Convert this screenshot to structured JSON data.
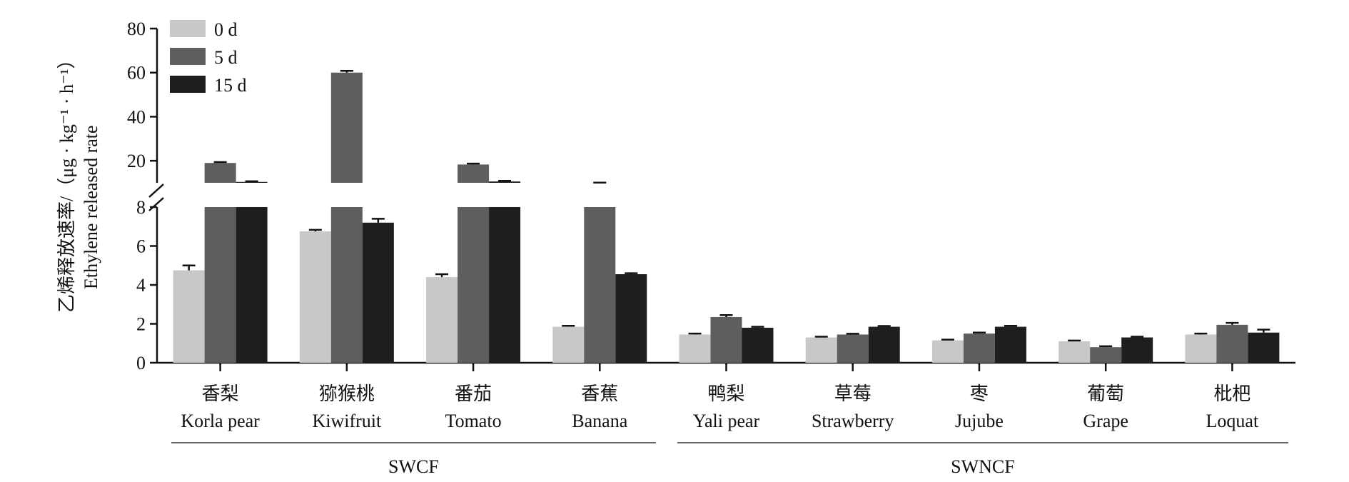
{
  "chart_data": {
    "type": "bar",
    "broken_y_axis": true,
    "ylabel_cn": "乙烯释放速率/（μg · kg⁻¹ · h⁻¹）",
    "ylabel_en": "Ethylene released rate",
    "ylim_lower": [
      0,
      8
    ],
    "ylim_upper": [
      10,
      80
    ],
    "yticks_lower": [
      "0",
      "2",
      "4",
      "6",
      "8"
    ],
    "yticks_upper": [
      "20",
      "40",
      "60",
      "80"
    ],
    "legend_position": "top-left",
    "categories_cn": [
      "香梨",
      "猕猴桃",
      "番茄",
      "香蕉",
      "鸭梨",
      "草莓",
      "枣",
      "葡萄",
      "枇杷"
    ],
    "categories_en": [
      "Korla pear",
      "Kiwifruit",
      "Tomato",
      "Banana",
      "Yali  pear",
      "Strawberry",
      "Jujube",
      "Grape",
      "Loquat"
    ],
    "groups": [
      {
        "label": "SWCF",
        "categories": [
          0,
          1,
          2,
          3
        ]
      },
      {
        "label": "SWNCF",
        "categories": [
          4,
          5,
          6,
          7,
          8
        ]
      }
    ],
    "series": [
      {
        "name": "0 d",
        "color": "#c8c8c8",
        "values": [
          4.75,
          6.75,
          4.4,
          1.85,
          1.45,
          1.3,
          1.15,
          1.1,
          1.45
        ],
        "errors": [
          0.25,
          0.08,
          0.15,
          0.05,
          0.05,
          0.04,
          0.04,
          0.04,
          0.05
        ]
      },
      {
        "name": "5 d",
        "color": "#5e5e5e",
        "values": [
          19,
          60,
          18.3,
          9.8,
          2.35,
          1.45,
          1.5,
          0.8,
          1.95
        ],
        "errors": [
          0.4,
          0.8,
          0.4,
          0.3,
          0.1,
          0.04,
          0.05,
          0.05,
          0.1
        ]
      },
      {
        "name": "15 d",
        "color": "#1e1e1e",
        "values": [
          10.4,
          7.2,
          10.6,
          4.55,
          1.8,
          1.85,
          1.85,
          1.3,
          1.55
        ],
        "errors": [
          0.3,
          0.2,
          0.3,
          0.05,
          0.05,
          0.04,
          0.05,
          0.04,
          0.15
        ]
      }
    ]
  }
}
